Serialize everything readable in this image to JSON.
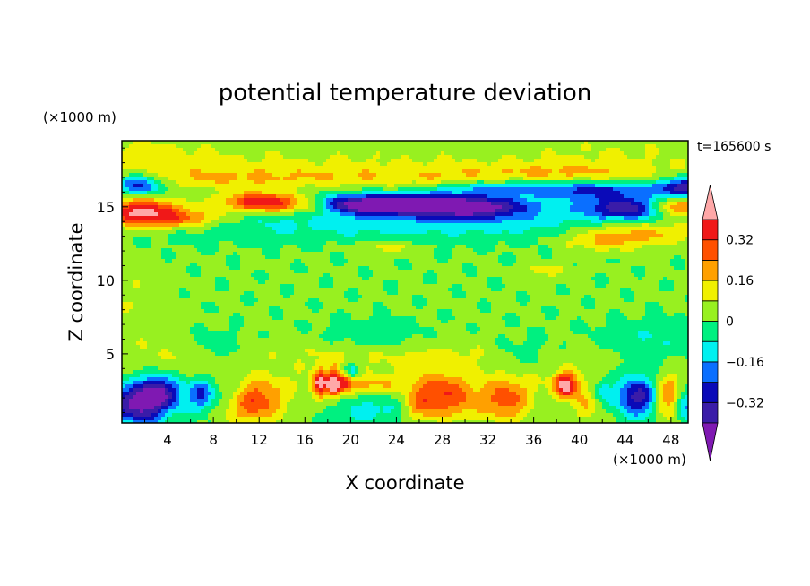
{
  "chart_data": {
    "type": "heatmap",
    "title": "potential temperature deviation",
    "xlabel": "X coordinate",
    "ylabel": "Z coordinate",
    "x_unit_label": "(×1000 m)",
    "y_unit_label": "(×1000 m)",
    "time_label": "t=165600 s",
    "xlim": [
      0,
      49.5
    ],
    "ylim": [
      0.3,
      19.5
    ],
    "x_ticks": [
      "4",
      "8",
      "12",
      "16",
      "20",
      "24",
      "28",
      "32",
      "36",
      "40",
      "44",
      "48"
    ],
    "y_ticks": [
      "5",
      "10",
      "15"
    ],
    "colorbar": {
      "tick_labels": [
        "0.32",
        "0.16",
        "0",
        "−0.16",
        "−0.32"
      ],
      "tick_values": [
        0.32,
        0.16,
        0,
        -0.16,
        -0.32
      ],
      "levels": [
        -0.4,
        -0.32,
        -0.24,
        -0.16,
        -0.08,
        0,
        0.08,
        0.16,
        0.24,
        0.32,
        0.4
      ],
      "colors": [
        "#7f19b2",
        "#3a1ca8",
        "#0a0ab8",
        "#0a6fff",
        "#00f0f0",
        "#00f080",
        "#98f020",
        "#f0f000",
        "#ffa000",
        "#ff5000",
        "#f01818",
        "#ffa8a8"
      ],
      "extend": "both"
    },
    "fields": {
      "background": 0.01,
      "features": [
        {
          "x": 16,
          "z": 18.0,
          "sx": 20,
          "sz": 0.9,
          "a": 0.07
        },
        {
          "x": 2,
          "z": 18.5,
          "sx": 4,
          "sz": 1.0,
          "a": 0.07
        },
        {
          "x": 44,
          "z": 18.8,
          "sx": 6,
          "sz": 1.0,
          "a": 0.05
        },
        {
          "x": 9,
          "z": 16.9,
          "sx": 6,
          "sz": 0.5,
          "a": 0.1
        },
        {
          "x": 26,
          "z": 17.0,
          "sx": 10,
          "sz": 0.5,
          "a": 0.11
        },
        {
          "x": 40,
          "z": 17.4,
          "sx": 6,
          "sz": 0.45,
          "a": 0.1
        },
        {
          "x": 1.5,
          "z": 16.5,
          "sx": 1.5,
          "sz": 0.5,
          "a": -0.33
        },
        {
          "x": 49,
          "z": 16.3,
          "sx": 1.5,
          "sz": 0.5,
          "a": -0.33
        },
        {
          "x": 42,
          "z": 16.1,
          "sx": 4,
          "sz": 0.45,
          "a": -0.26
        },
        {
          "x": 33,
          "z": 16.3,
          "sx": 4,
          "sz": 0.4,
          "a": -0.18
        },
        {
          "x": 1.5,
          "z": 14.6,
          "sx": 2.5,
          "sz": 0.7,
          "a": 0.44
        },
        {
          "x": 6,
          "z": 14.2,
          "sx": 2.5,
          "sz": 0.5,
          "a": 0.22
        },
        {
          "x": 12.5,
          "z": 15.3,
          "sx": 2.6,
          "sz": 0.45,
          "a": 0.44
        },
        {
          "x": 17,
          "z": 15.0,
          "sx": 2.2,
          "sz": 0.4,
          "a": 0.22
        },
        {
          "x": 48.5,
          "z": 15.0,
          "sx": 1.5,
          "sz": 0.45,
          "a": 0.34
        },
        {
          "x": 46,
          "z": 13.3,
          "sx": 4.5,
          "sz": 0.6,
          "a": 0.22
        },
        {
          "x": 42,
          "z": 12.6,
          "sx": 2.5,
          "sz": 0.5,
          "a": 0.12
        },
        {
          "x": 25,
          "z": 15.2,
          "sx": 6,
          "sz": 0.5,
          "a": -0.35
        },
        {
          "x": 20,
          "z": 15.1,
          "sx": 3,
          "sz": 0.4,
          "a": -0.28
        },
        {
          "x": 30,
          "z": 14.9,
          "sx": 4,
          "sz": 0.5,
          "a": -0.33
        },
        {
          "x": 44,
          "z": 14.9,
          "sx": 2.6,
          "sz": 0.5,
          "a": -0.36
        },
        {
          "x": 27,
          "z": 13.8,
          "sx": 22,
          "sz": 0.8,
          "a": -0.12
        },
        {
          "x": 23,
          "z": 12.3,
          "sx": 2,
          "sz": 0.3,
          "a": 0.12
        },
        {
          "x": 37,
          "z": 10.7,
          "sx": 1.5,
          "sz": 0.3,
          "a": 0.12
        },
        {
          "x": 1,
          "z": 8.5,
          "sx": 2,
          "sz": 2,
          "a": 0.06
        },
        {
          "x": 5,
          "z": 5.0,
          "sx": 3,
          "sz": 1.0,
          "a": 0.07
        },
        {
          "x": 19,
          "z": 5.0,
          "sx": 7,
          "sz": 0.8,
          "a": 0.06
        },
        {
          "x": 30,
          "z": 4.8,
          "sx": 8,
          "sz": 0.8,
          "a": 0.07
        },
        {
          "x": 8,
          "z": 5.5,
          "sx": 2,
          "sz": 0.7,
          "a": -0.1
        },
        {
          "x": 22,
          "z": 6.0,
          "sx": 3,
          "sz": 0.8,
          "a": -0.09
        },
        {
          "x": 46,
          "z": 6.0,
          "sx": 3,
          "sz": 0.8,
          "a": -0.09
        },
        {
          "x": 35,
          "z": 5.0,
          "sx": 2,
          "sz": 0.8,
          "a": -0.09
        },
        {
          "x": 1.5,
          "z": 1.6,
          "sx": 1.8,
          "sz": 1.0,
          "a": -0.44
        },
        {
          "x": 3.5,
          "z": 2.5,
          "sx": 1.5,
          "sz": 0.8,
          "a": -0.3
        },
        {
          "x": 7,
          "z": 2.3,
          "sx": 0.8,
          "sz": 0.8,
          "a": -0.28
        },
        {
          "x": 11.5,
          "z": 1.7,
          "sx": 1.8,
          "sz": 1.0,
          "a": 0.3
        },
        {
          "x": 9.5,
          "z": 2.5,
          "sx": 1.0,
          "sz": 0.8,
          "a": -0.12
        },
        {
          "x": 17.3,
          "z": 3.0,
          "sx": 0.4,
          "sz": 0.7,
          "a": 0.35
        },
        {
          "x": 18.5,
          "z": 3.0,
          "sx": 0.4,
          "sz": 0.7,
          "a": 0.42
        },
        {
          "x": 19.5,
          "z": 3.2,
          "sx": 0.4,
          "sz": 0.5,
          "a": 0.25
        },
        {
          "x": 21,
          "z": 2.9,
          "sx": 2.5,
          "sz": 0.4,
          "a": 0.14
        },
        {
          "x": 20,
          "z": 3.8,
          "sx": 0.6,
          "sz": 0.4,
          "a": -0.22
        },
        {
          "x": 22,
          "z": 1.2,
          "sx": 2.5,
          "sz": 0.8,
          "a": -0.12
        },
        {
          "x": 28,
          "z": 2.2,
          "sx": 1.5,
          "sz": 1.0,
          "a": 0.26
        },
        {
          "x": 26,
          "z": 1.5,
          "sx": 1.0,
          "sz": 0.8,
          "a": 0.2
        },
        {
          "x": 33.5,
          "z": 1.8,
          "sx": 1.6,
          "sz": 1.0,
          "a": 0.26
        },
        {
          "x": 30,
          "z": 1.5,
          "sx": 1.2,
          "sz": 0.8,
          "a": 0.1
        },
        {
          "x": 38.8,
          "z": 2.9,
          "sx": 0.7,
          "sz": 0.6,
          "a": 0.42
        },
        {
          "x": 40.5,
          "z": 1.6,
          "sx": 1.0,
          "sz": 0.8,
          "a": 0.14
        },
        {
          "x": 42,
          "z": 2.5,
          "sx": 0.6,
          "sz": 0.6,
          "a": -0.16
        },
        {
          "x": 45,
          "z": 2.2,
          "sx": 1.3,
          "sz": 1.0,
          "a": -0.38
        },
        {
          "x": 47.8,
          "z": 2.0,
          "sx": 0.8,
          "sz": 1.0,
          "a": 0.24
        },
        {
          "x": 49.2,
          "z": 1.5,
          "sx": 0.6,
          "sz": 0.8,
          "a": -0.22
        },
        {
          "x": 25,
          "z": 3.0,
          "sx": 30,
          "sz": 0.7,
          "a": 0.05
        }
      ],
      "note_units": "features are Gaussian bumps (x,z in ×1000 m, amplitude a in field units)"
    }
  }
}
